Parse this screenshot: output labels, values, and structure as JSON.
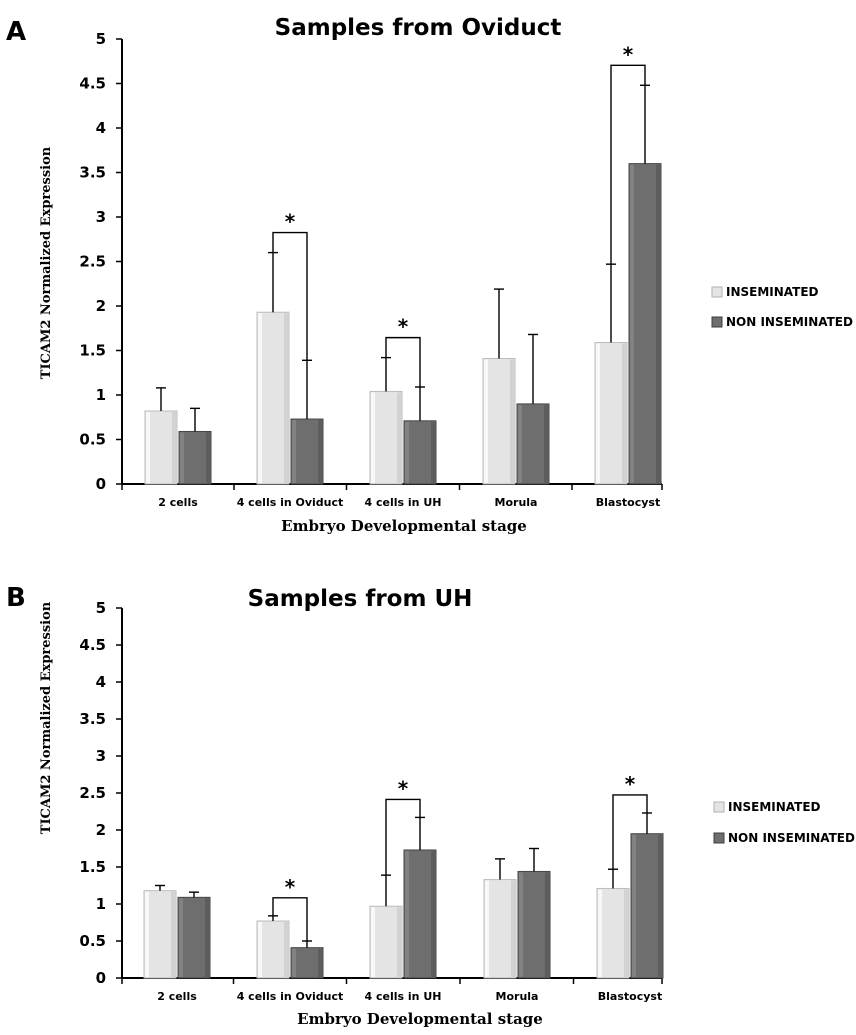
{
  "chart_data": [
    {
      "type": "bar",
      "panel": "A",
      "title": "Samples from Oviduct",
      "xlabel": "Embryo Developmental stage",
      "ylabel": "TICAM2 Normalized Expression",
      "ylim": [
        0,
        5
      ],
      "yticks": [
        "0",
        "0.5",
        "1",
        "1.5",
        "2",
        "2.5",
        "3",
        "3.5",
        "4",
        "4.5",
        "5"
      ],
      "categories": [
        "2 cells",
        "4 cells  in Oviduct",
        "4 cells in UH",
        "Morula",
        "Blastocyst"
      ],
      "series": [
        {
          "name": "INSEMINATED",
          "values": [
            0.82,
            1.93,
            1.04,
            1.41,
            1.59
          ],
          "errors": [
            0.26,
            0.67,
            0.38,
            0.78,
            0.88
          ],
          "color": "#e4e4e4"
        },
        {
          "name": "NON INSEMINATED",
          "values": [
            0.59,
            0.73,
            0.71,
            0.9,
            3.6
          ],
          "errors": [
            0.26,
            0.66,
            0.38,
            0.78,
            0.88
          ],
          "color": "#6e6e6e"
        }
      ],
      "significance": [
        "",
        "*",
        "*",
        "",
        "*"
      ],
      "legend_position": "right",
      "grid": false
    },
    {
      "type": "bar",
      "panel": "B",
      "title": "Samples from UH",
      "xlabel": "Embryo Developmental stage",
      "ylabel": "TICAM2 Normalized Expression",
      "ylim": [
        0,
        5
      ],
      "yticks": [
        "0",
        "0.5",
        "1",
        "1.5",
        "2",
        "2.5",
        "3",
        "3.5",
        "4",
        "4.5",
        "5"
      ],
      "categories": [
        "2 cells",
        "4 cells  in Oviduct",
        "4 cells in UH",
        "Morula",
        "Blastocyst"
      ],
      "series": [
        {
          "name": "INSEMINATED",
          "values": [
            1.18,
            0.77,
            0.97,
            1.33,
            1.21
          ],
          "errors": [
            0.07,
            0.07,
            0.42,
            0.28,
            0.26
          ],
          "color": "#e4e4e4"
        },
        {
          "name": "NON INSEMINATED",
          "values": [
            1.09,
            0.41,
            1.73,
            1.44,
            1.95
          ],
          "errors": [
            0.07,
            0.09,
            0.44,
            0.31,
            0.28
          ],
          "color": "#6e6e6e"
        }
      ],
      "significance": [
        "",
        "*",
        "*",
        "",
        "*"
      ],
      "legend_position": "right",
      "grid": false
    }
  ]
}
